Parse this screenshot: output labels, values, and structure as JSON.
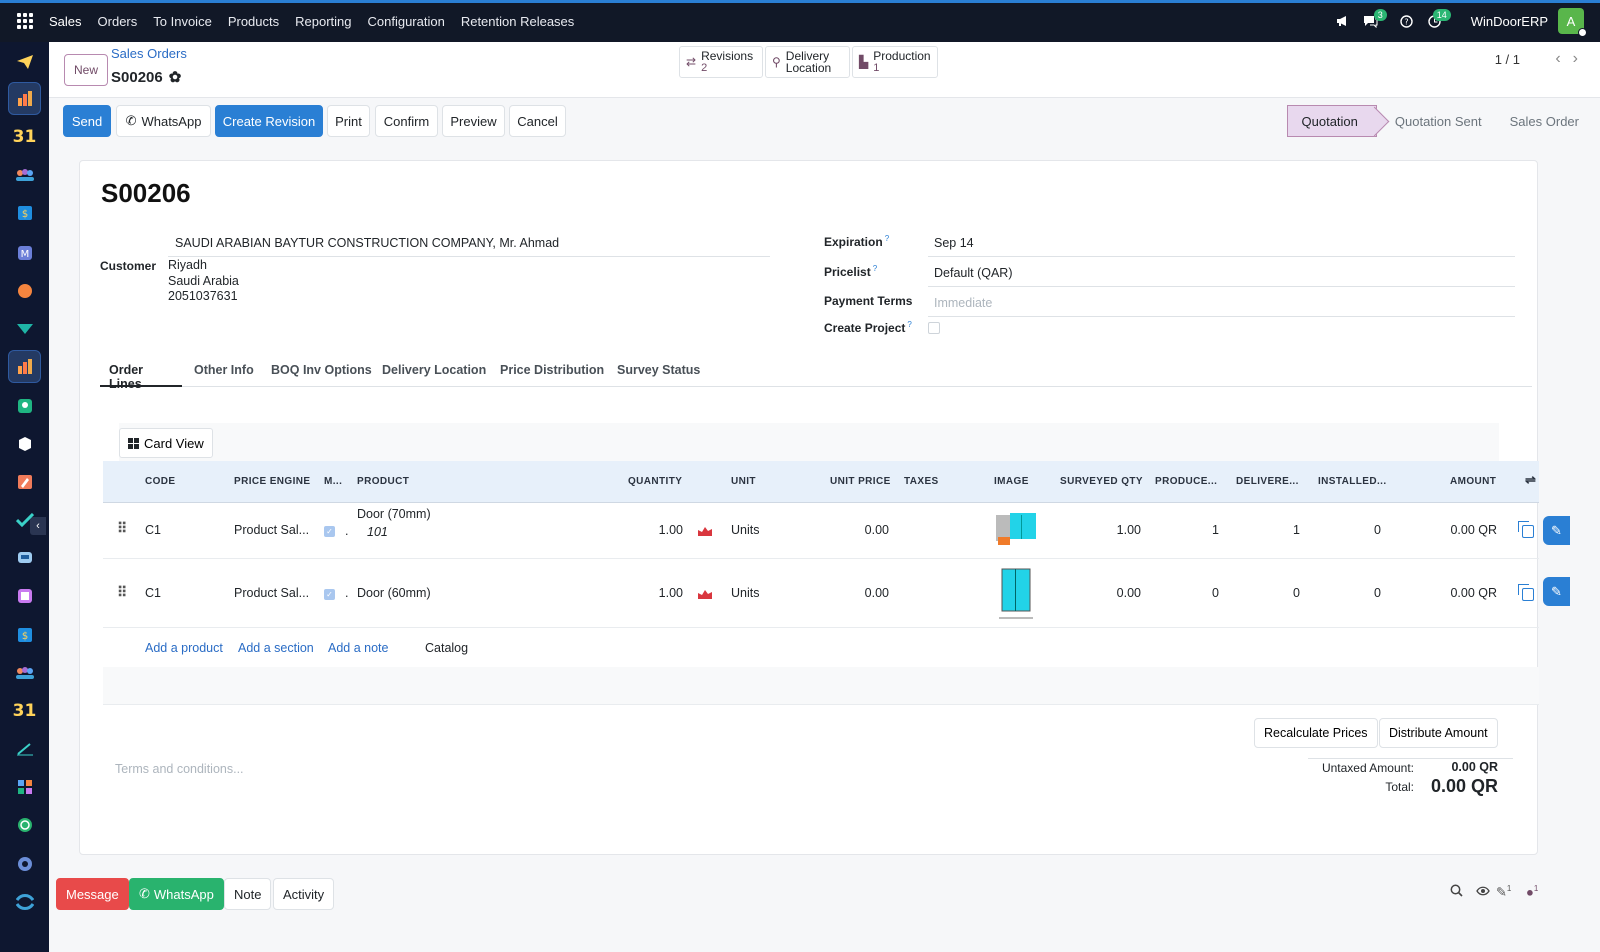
{
  "topbar": {
    "menu": [
      "Sales",
      "Orders",
      "To Invoice",
      "Products",
      "Reporting",
      "Configuration",
      "Retention Releases"
    ],
    "messages_badge": "3",
    "activities_badge": "14",
    "db_name": "WinDoorERP",
    "avatar_letter": "A",
    "accent_color": "#2a7fd4"
  },
  "sidebar": {
    "icons": [
      "send-icon",
      "sales-icon",
      "calendar-icon",
      "contacts-icon",
      "invoicing-icon",
      "mail-icon",
      "discuss-icon",
      "inventory-icon",
      "sales-icon",
      "contacts-card-icon",
      "product-icon",
      "studio-icon",
      "checklist-icon",
      "helpdesk-icon",
      "package-icon",
      "invoicing-icon",
      "employees-icon",
      "calendar-icon",
      "sign-icon",
      "dashboard-icon",
      "whatsapp-icon",
      "website-icon",
      "odoo-icon"
    ],
    "calendar_label": "31"
  },
  "control_panel": {
    "new_label": "New",
    "breadcrumb": "Sales Orders",
    "record_name": "S00206",
    "smart_buttons": [
      {
        "label": "Revisions",
        "count": "2"
      },
      {
        "label": "Delivery Location",
        "count": ""
      },
      {
        "label": "Production",
        "count": "1"
      }
    ],
    "pager": "1 / 1"
  },
  "actions": {
    "buttons": [
      "Send",
      "WhatsApp",
      "Create Revision",
      "Print",
      "Confirm",
      "Preview",
      "Cancel"
    ],
    "statuses": [
      "Quotation",
      "Quotation Sent",
      "Sales Order"
    ],
    "active_status": "Quotation"
  },
  "form": {
    "title": "S00206",
    "customer_label": "Customer",
    "customer_name": "SAUDI ARABIAN BAYTUR CONSTRUCTION COMPANY, Mr. Ahmad",
    "customer_address": [
      "Riyadh",
      "Saudi Arabia",
      "2051037631"
    ],
    "expiration_label": "Expiration",
    "expiration": "Sep 14",
    "pricelist_label": "Pricelist",
    "pricelist": "Default (QAR)",
    "payment_terms_label": "Payment Terms",
    "payment_terms_placeholder": "Immediate",
    "create_project_label": "Create Project"
  },
  "tabs": [
    "Order Lines",
    "Other Info",
    "BOQ Inv Options",
    "Delivery Location",
    "Price Distribution",
    "Survey Status"
  ],
  "order_lines": {
    "card_view_label": "Card View",
    "columns": [
      "CODE",
      "PRICE ENGINE",
      "M...",
      "PRODUCT",
      "QUANTITY",
      "UNIT",
      "UNIT PRICE",
      "TAXES",
      "IMAGE",
      "SURVEYED QTY",
      "PRODUCE...",
      "DELIVERE...",
      "INSTALLED...",
      "AMOUNT"
    ],
    "rows": [
      {
        "code": "C1",
        "engine": "Product Sal...",
        "product": "Door (70mm)",
        "product_note": "101",
        "qty": "1.00",
        "unit": "Units",
        "unit_price": "0.00",
        "surveyed": "1.00",
        "produced": "1",
        "delivered": "1",
        "installed": "0",
        "amount": "0.00 QR"
      },
      {
        "code": "C1",
        "engine": "Product Sal...",
        "product": "Door (60mm)",
        "product_note": "",
        "qty": "1.00",
        "unit": "Units",
        "unit_price": "0.00",
        "surveyed": "0.00",
        "produced": "0",
        "delivered": "0",
        "installed": "0",
        "amount": "0.00 QR"
      }
    ],
    "add_links": [
      "Add a product",
      "Add a section",
      "Add a note",
      "Catalog"
    ],
    "recalc_label": "Recalculate Prices",
    "distribute_label": "Distribute Amount",
    "terms_placeholder": "Terms and conditions...",
    "untaxed_label": "Untaxed Amount:",
    "untaxed_value": "0.00 QR",
    "total_label": "Total:",
    "total_value": "0.00 QR"
  },
  "chatter": {
    "buttons": [
      "Message",
      "WhatsApp",
      "Note",
      "Activity"
    ],
    "attachments_count": "1",
    "followers_count": "1"
  }
}
